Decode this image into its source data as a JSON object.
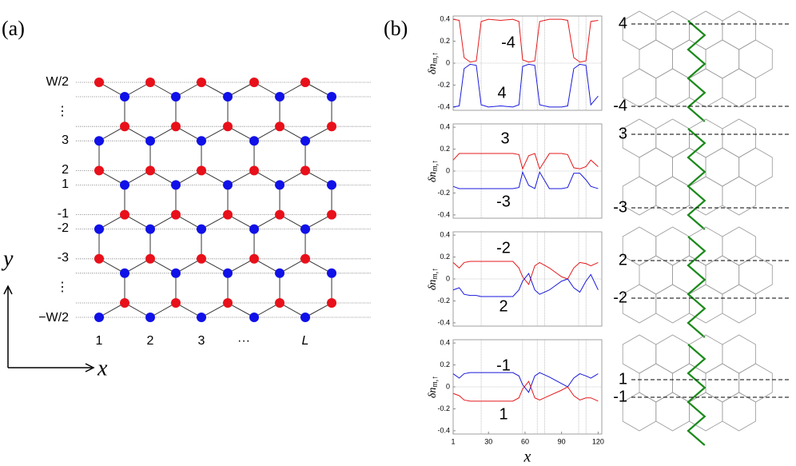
{
  "panel_labels": [
    "(a)",
    "(b)"
  ],
  "lattice": {
    "row_labels": [
      "W/2",
      "⋮",
      "3",
      "2",
      "1",
      "-1",
      "-2",
      "-3",
      "⋮",
      "−W/2"
    ],
    "column_labels": [
      "1",
      "2",
      "3",
      "···",
      "L"
    ],
    "y_axis": "y",
    "x_axis": "x"
  },
  "ribbons": [
    {
      "top": "4",
      "bottom": "-4"
    },
    {
      "top": "3",
      "bottom": "-3"
    },
    {
      "top": "2",
      "bottom": "-2"
    },
    {
      "top": "1",
      "bottom": "-1"
    }
  ],
  "chart_data": [
    {
      "type": "line",
      "ylabel": "δn",
      "ylabel_sub": "m,↑",
      "ylim": [
        -0.43,
        0.43
      ],
      "xlim": [
        1,
        123
      ],
      "yticks": [
        -0.4,
        -0.2,
        0,
        0.2,
        0.4
      ],
      "vlines": [
        24,
        58,
        70,
        76,
        104,
        110
      ],
      "x": [
        1,
        6,
        10,
        15,
        20,
        24,
        30,
        40,
        50,
        55,
        58,
        63,
        68,
        72,
        80,
        90,
        95,
        100,
        105,
        110,
        114,
        120
      ],
      "series": [
        {
          "name": "-4",
          "color": "#e41a1c",
          "values": [
            0.4,
            0.39,
            0.05,
            0.01,
            0.02,
            0.38,
            0.4,
            0.39,
            0.4,
            0.38,
            0.03,
            0.01,
            0.02,
            0.38,
            0.4,
            0.4,
            0.39,
            0.05,
            0.01,
            0.02,
            0.38,
            0.39
          ]
        },
        {
          "name": "4",
          "color": "#1a1adc",
          "values": [
            -0.4,
            -0.39,
            -0.05,
            -0.01,
            -0.02,
            -0.38,
            -0.4,
            -0.39,
            -0.4,
            -0.38,
            -0.03,
            -0.01,
            -0.02,
            -0.38,
            -0.4,
            -0.4,
            -0.39,
            -0.05,
            -0.01,
            -0.02,
            -0.38,
            -0.3
          ]
        }
      ]
    },
    {
      "type": "line",
      "ylabel": "δn",
      "ylabel_sub": "m,↑",
      "ylim": [
        -0.43,
        0.43
      ],
      "xlim": [
        1,
        123
      ],
      "yticks": [
        -0.4,
        -0.2,
        0,
        0.2,
        0.4
      ],
      "vlines": [
        24,
        58,
        70,
        76,
        104,
        110
      ],
      "x": [
        1,
        6,
        10,
        15,
        20,
        24,
        30,
        40,
        50,
        55,
        58,
        63,
        68,
        72,
        80,
        90,
        95,
        100,
        105,
        110,
        114,
        120
      ],
      "series": [
        {
          "name": "3",
          "color": "#e41a1c",
          "values": [
            0.1,
            0.16,
            0.16,
            0.16,
            0.16,
            0.16,
            0.16,
            0.16,
            0.16,
            0.15,
            0.02,
            0.14,
            0.16,
            0.02,
            0.16,
            0.16,
            0.15,
            0.03,
            0.02,
            0.04,
            0.1,
            0.04
          ]
        },
        {
          "name": "-3",
          "color": "#1a1adc",
          "values": [
            -0.14,
            -0.16,
            -0.16,
            -0.16,
            -0.16,
            -0.16,
            -0.16,
            -0.16,
            -0.16,
            -0.15,
            -0.01,
            -0.13,
            -0.16,
            -0.01,
            -0.16,
            -0.16,
            -0.15,
            -0.02,
            -0.02,
            -0.08,
            -0.14,
            -0.16
          ]
        }
      ]
    },
    {
      "type": "line",
      "ylabel": "δn",
      "ylabel_sub": "m,↑",
      "ylim": [
        -0.43,
        0.43
      ],
      "xlim": [
        1,
        123
      ],
      "yticks": [
        -0.4,
        -0.2,
        0,
        0.2,
        0.4
      ],
      "vlines": [
        24,
        58,
        70,
        76,
        104,
        110
      ],
      "x": [
        1,
        6,
        10,
        15,
        20,
        24,
        30,
        40,
        50,
        55,
        58,
        63,
        68,
        72,
        80,
        90,
        95,
        100,
        105,
        110,
        114,
        120
      ],
      "series": [
        {
          "name": "-2",
          "color": "#e41a1c",
          "values": [
            0.15,
            0.1,
            0.15,
            0.16,
            0.16,
            0.16,
            0.16,
            0.16,
            0.16,
            0.1,
            0.02,
            -0.05,
            0.12,
            0.15,
            0.1,
            0.02,
            0.0,
            0.1,
            0.15,
            0.14,
            0.12,
            0.15
          ]
        },
        {
          "name": "2",
          "color": "#1a1adc",
          "values": [
            -0.1,
            -0.08,
            -0.14,
            -0.15,
            -0.15,
            -0.16,
            -0.16,
            -0.16,
            -0.16,
            -0.1,
            -0.02,
            0.05,
            -0.1,
            -0.14,
            -0.1,
            -0.02,
            0.0,
            -0.08,
            -0.12,
            -0.02,
            0.04,
            -0.1
          ]
        }
      ]
    },
    {
      "type": "line",
      "ylabel": "δn",
      "ylabel_sub": "m,↑",
      "xlabel": "x",
      "ylim": [
        -0.43,
        0.43
      ],
      "xlim": [
        1,
        123
      ],
      "yticks": [
        -0.4,
        -0.2,
        0,
        0.2,
        0.4
      ],
      "xticks": [
        1,
        30,
        60,
        90,
        120
      ],
      "vlines": [
        24,
        58,
        70,
        76,
        104,
        110
      ],
      "x": [
        1,
        6,
        10,
        15,
        20,
        24,
        30,
        40,
        50,
        55,
        58,
        63,
        68,
        72,
        80,
        90,
        95,
        100,
        105,
        110,
        114,
        120
      ],
      "series": [
        {
          "name": "-1",
          "color": "#1a1adc",
          "values": [
            0.12,
            0.08,
            0.12,
            0.13,
            0.13,
            0.13,
            0.13,
            0.13,
            0.13,
            0.1,
            0.02,
            -0.05,
            0.1,
            0.13,
            0.09,
            0.03,
            0.0,
            0.08,
            0.12,
            0.1,
            0.08,
            0.12
          ]
        },
        {
          "name": "1",
          "color": "#e41a1c",
          "values": [
            -0.06,
            -0.08,
            -0.12,
            -0.13,
            -0.13,
            -0.13,
            -0.13,
            -0.13,
            -0.13,
            -0.1,
            -0.02,
            0.05,
            -0.1,
            -0.12,
            -0.08,
            -0.03,
            0.0,
            -0.08,
            -0.12,
            -0.1,
            -0.1,
            -0.13
          ]
        }
      ]
    }
  ]
}
